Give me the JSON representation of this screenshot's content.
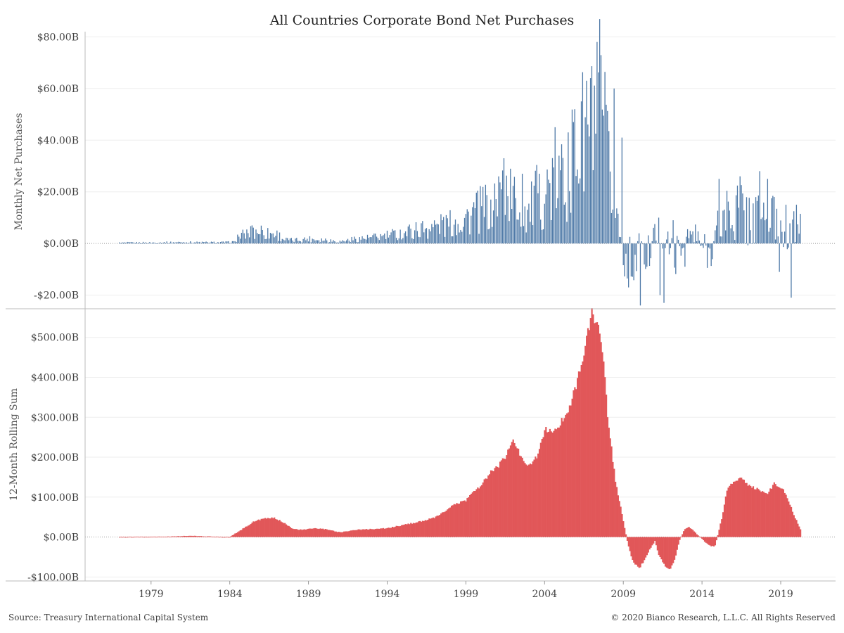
{
  "title": "All Countries Corporate Bond Net Purchases",
  "footer": {
    "source": "Source: Treasury International Capital System",
    "copyright": "© 2020 Bianco Research, L.L.C. All Rights Reserved"
  },
  "colors": {
    "top_bars": "#4e79a7",
    "bottom_area": "#e15759",
    "axis": "#bbbbbb",
    "grid": "#eeeeee"
  },
  "chart_data": [
    {
      "type": "bar",
      "ylabel": "Monthly Net Purchases",
      "ylim": [
        -25,
        82
      ],
      "yticks": [
        -20,
        0,
        20,
        40,
        60,
        80
      ],
      "ytick_labels": [
        "-$20.00B",
        "$0.00B",
        "$20.00B",
        "$40.00B",
        "$60.00B",
        "$80.00B"
      ],
      "unit": "$B",
      "x_range": [
        1977.0,
        2020.25
      ],
      "grid": true,
      "series": [
        {
          "points": [
            [
              1977.0,
              0.2
            ],
            [
              1979.0,
              0.3
            ],
            [
              1981.0,
              0.5
            ],
            [
              1983.0,
              0.4
            ],
            [
              1984.0,
              0.5
            ],
            [
              1984.5,
              2.5
            ],
            [
              1985.0,
              3.5
            ],
            [
              1985.5,
              4.5
            ],
            [
              1986.0,
              5.0
            ],
            [
              1986.5,
              4.0
            ],
            [
              1987.0,
              3.5
            ],
            [
              1987.5,
              1.5
            ],
            [
              1988.0,
              1.2
            ],
            [
              1989.0,
              1.8
            ],
            [
              1990.0,
              1.5
            ],
            [
              1991.0,
              0.8
            ],
            [
              1992.0,
              1.8
            ],
            [
              1993.0,
              2.2
            ],
            [
              1994.0,
              3.0
            ],
            [
              1995.0,
              4.0
            ],
            [
              1996.0,
              5.5
            ],
            [
              1997.0,
              6.5
            ],
            [
              1998.0,
              7.5
            ],
            [
              1999.0,
              10.0
            ],
            [
              2000.0,
              13.0
            ],
            [
              2000.5,
              15.0
            ],
            [
              2001.0,
              18.0
            ],
            [
              2001.5,
              22.0
            ],
            [
              2002.0,
              17.0
            ],
            [
              2002.5,
              14.0
            ],
            [
              2003.0,
              12.0
            ],
            [
              2003.5,
              18.0
            ],
            [
              2004.0,
              20.0
            ],
            [
              2004.5,
              22.0
            ],
            [
              2005.0,
              24.0
            ],
            [
              2005.5,
              28.0
            ],
            [
              2006.0,
              34.0
            ],
            [
              2006.5,
              40.0
            ],
            [
              2007.0,
              45.0
            ],
            [
              2007.5,
              50.0
            ],
            [
              2007.8,
              42.0
            ],
            [
              2008.0,
              30.0
            ],
            [
              2008.3,
              20.0
            ],
            [
              2008.6,
              10.0
            ],
            [
              2009.0,
              -3.0
            ],
            [
              2009.3,
              -10.0
            ],
            [
              2009.6,
              -7.0
            ],
            [
              2010.0,
              -4.0
            ],
            [
              2010.5,
              -6.0
            ],
            [
              2011.0,
              3.0
            ],
            [
              2011.5,
              4.0
            ],
            [
              2012.0,
              -2.0
            ],
            [
              2012.5,
              -5.0
            ],
            [
              2013.0,
              2.0
            ],
            [
              2013.5,
              3.0
            ],
            [
              2014.0,
              -1.0
            ],
            [
              2014.5,
              -4.0
            ],
            [
              2015.0,
              6.0
            ],
            [
              2015.5,
              12.0
            ],
            [
              2016.0,
              13.0
            ],
            [
              2016.5,
              12.0
            ],
            [
              2017.0,
              10.0
            ],
            [
              2017.5,
              9.0
            ],
            [
              2018.0,
              11.0
            ],
            [
              2018.5,
              9.0
            ],
            [
              2019.0,
              6.0
            ],
            [
              2019.5,
              3.0
            ],
            [
              2020.0,
              5.0
            ],
            [
              2020.25,
              9.0
            ]
          ],
          "spikes": [
            [
              1985.4,
              7.0
            ],
            [
              1986.4,
              6.0
            ],
            [
              1997.5,
              9.0
            ],
            [
              1999.5,
              16.0
            ],
            [
              2000.6,
              17.0
            ],
            [
              2001.4,
              33.0
            ],
            [
              2002.6,
              27.0
            ],
            [
              2003.7,
              27.0
            ],
            [
              2004.7,
              45.0
            ],
            [
              2005.5,
              43.0
            ],
            [
              2005.8,
              47.0
            ],
            [
              2006.3,
              55.0
            ],
            [
              2006.7,
              63.0
            ],
            [
              2006.9,
              64.0
            ],
            [
              2007.3,
              78.0
            ],
            [
              2008.4,
              60.0
            ],
            [
              2008.9,
              41.0
            ],
            [
              2009.3,
              -17.0
            ],
            [
              2010.1,
              -24.0
            ],
            [
              2010.5,
              -9.0
            ],
            [
              2011.3,
              -20.0
            ],
            [
              2011.6,
              -23.0
            ],
            [
              2012.2,
              9.0
            ],
            [
              2012.9,
              -9.0
            ],
            [
              2015.1,
              25.0
            ],
            [
              2016.4,
              26.0
            ],
            [
              2017.7,
              28.0
            ],
            [
              2018.2,
              25.0
            ],
            [
              2018.6,
              18.0
            ],
            [
              2018.9,
              -11.0
            ],
            [
              2019.3,
              15.0
            ],
            [
              2019.7,
              -21.0
            ],
            [
              2020.0,
              15.0
            ]
          ]
        }
      ]
    },
    {
      "type": "area",
      "ylabel": "12-Month Rolling Sum",
      "ylim": [
        -110,
        570
      ],
      "yticks": [
        -100,
        0,
        100,
        200,
        300,
        400,
        500
      ],
      "ytick_labels": [
        "-$100.00B",
        "$0.00B",
        "$100.00B",
        "$200.00B",
        "$300.00B",
        "$400.00B",
        "$500.00B"
      ],
      "unit": "$B",
      "x": [
        1977.0,
        1980.0,
        1981.5,
        1983.0,
        1984.0,
        1984.8,
        1985.5,
        1986.0,
        1986.8,
        1987.5,
        1988.0,
        1988.7,
        1989.3,
        1990.0,
        1991.0,
        1992.0,
        1993.0,
        1994.0,
        1995.0,
        1996.0,
        1997.0,
        1997.5,
        1998.0,
        1998.5,
        1999.0,
        1999.5,
        2000.0,
        2000.5,
        2001.0,
        2001.5,
        2002.0,
        2002.5,
        2003.0,
        2003.5,
        2004.0,
        2004.5,
        2005.0,
        2005.5,
        2006.0,
        2006.5,
        2007.0,
        2007.5,
        2007.75,
        2008.0,
        2008.5,
        2009.0,
        2009.3,
        2009.6,
        2010.0,
        2010.3,
        2010.7,
        2011.0,
        2011.3,
        2011.7,
        2012.0,
        2012.3,
        2012.6,
        2012.9,
        2013.2,
        2013.6,
        2014.0,
        2014.4,
        2014.8,
        2015.0,
        2015.3,
        2015.6,
        2016.0,
        2016.5,
        2017.0,
        2017.5,
        2017.8,
        2018.2,
        2018.6,
        2019.0,
        2019.3,
        2019.6,
        2019.9,
        2020.25
      ],
      "y": [
        0,
        1,
        3,
        1,
        0,
        20,
        38,
        45,
        48,
        35,
        20,
        18,
        22,
        20,
        12,
        18,
        20,
        22,
        30,
        38,
        48,
        60,
        75,
        85,
        92,
        115,
        130,
        160,
        175,
        200,
        245,
        200,
        180,
        200,
        270,
        260,
        285,
        320,
        380,
        460,
        560,
        520,
        440,
        300,
        140,
        40,
        -20,
        -60,
        -80,
        -60,
        -30,
        -10,
        -50,
        -75,
        -80,
        -50,
        -5,
        20,
        25,
        10,
        -5,
        -20,
        -25,
        5,
        55,
        120,
        140,
        145,
        130,
        120,
        115,
        110,
        135,
        125,
        110,
        80,
        50,
        20
      ],
      "grid": true
    }
  ],
  "x_axis": {
    "tick_labels": [
      "1979",
      "1984",
      "1989",
      "1994",
      "1999",
      "2004",
      "2009",
      "2014",
      "2019"
    ],
    "tick_values": [
      1979,
      1984,
      1989,
      1994,
      1999,
      2004,
      2009,
      2014,
      2019
    ]
  }
}
